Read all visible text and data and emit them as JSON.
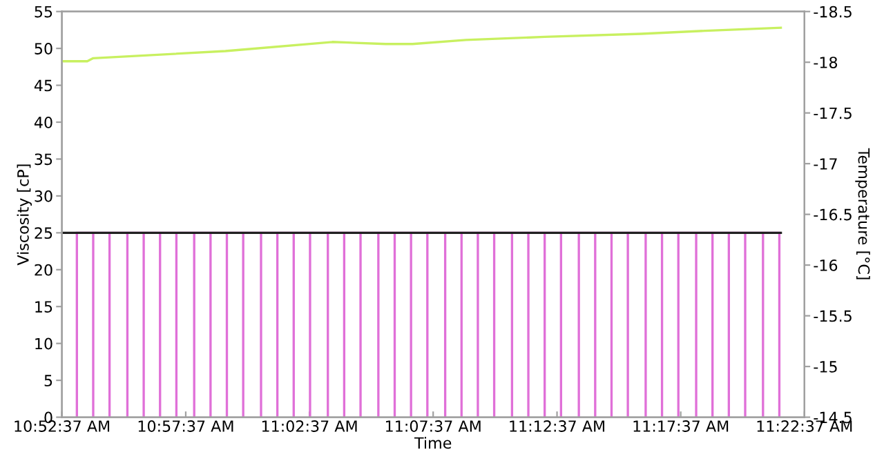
{
  "chart_data": {
    "type": "line",
    "xlabel": "Time",
    "ylabel": "Viscosity [cP]",
    "y2label": "Temperature [°C]",
    "xlim": [
      10.8769,
      11.3769
    ],
    "xticks": [
      {
        "value": 10.8769,
        "label": "10:52:37 AM"
      },
      {
        "value": 10.9603,
        "label": "10:57:37 AM"
      },
      {
        "value": 11.0436,
        "label": "11:02:37 AM"
      },
      {
        "value": 11.1269,
        "label": "11:07:37 AM"
      },
      {
        "value": 11.2103,
        "label": "11:12:37 AM"
      },
      {
        "value": 11.2936,
        "label": "11:17:37 AM"
      },
      {
        "value": 11.3769,
        "label": "11:22:37 AM"
      }
    ],
    "ylim": [
      0,
      55
    ],
    "yticks": [
      0,
      5,
      10,
      15,
      20,
      25,
      30,
      35,
      40,
      45,
      50,
      55
    ],
    "y2lim": [
      -14.5,
      -18.5
    ],
    "y2ticks": [
      -18.5,
      -18,
      -17.5,
      -17,
      -16.5,
      -16,
      -15.5,
      -15,
      -14.5
    ],
    "grid": false,
    "legend": false,
    "series": [
      {
        "color": "#e070d8",
        "x": [
          10.887,
          10.887,
          10.887,
          10.898,
          10.898,
          10.898,
          10.909,
          10.909,
          10.909,
          10.921,
          10.921,
          10.921,
          10.932,
          10.932,
          10.932,
          10.943,
          10.943,
          10.943,
          10.954,
          10.954,
          10.954,
          10.966,
          10.966,
          10.966,
          10.977,
          10.977,
          10.977,
          10.988,
          10.988,
          10.988,
          10.999,
          10.999,
          10.999,
          11.011,
          11.011,
          11.011,
          11.022,
          11.022,
          11.022,
          11.033,
          11.033,
          11.033,
          11.044,
          11.044,
          11.044,
          11.056,
          11.056,
          11.056,
          11.067,
          11.067,
          11.067,
          11.078,
          11.078,
          11.078,
          11.09,
          11.09,
          11.09,
          11.101,
          11.101,
          11.101,
          11.112,
          11.112,
          11.112,
          11.123,
          11.123,
          11.123,
          11.135,
          11.135,
          11.135,
          11.146,
          11.146,
          11.146,
          11.157,
          11.157,
          11.157,
          11.168,
          11.168,
          11.168,
          11.18,
          11.18,
          11.18,
          11.191,
          11.191,
          11.191,
          11.202,
          11.202,
          11.202,
          11.213,
          11.213,
          11.213,
          11.225,
          11.225,
          11.225,
          11.236,
          11.236,
          11.236,
          11.247,
          11.247,
          11.247,
          11.258,
          11.258,
          11.258,
          11.27,
          11.27,
          11.27,
          11.281,
          11.281,
          11.281,
          11.292,
          11.292,
          11.292,
          11.304,
          11.304,
          11.304,
          11.315,
          11.315,
          11.315,
          11.326,
          11.326,
          11.326,
          11.337,
          11.337,
          11.337,
          11.349,
          11.349,
          11.349,
          11.36,
          11.36,
          11.36
        ],
        "values": [
          25,
          0,
          25,
          25,
          0,
          25,
          25,
          0,
          25,
          25,
          0,
          25,
          25,
          0,
          25,
          25,
          0,
          25,
          25,
          0,
          25,
          25,
          0,
          25,
          25,
          0,
          25,
          25,
          0,
          25,
          25,
          0,
          25,
          25,
          0,
          25,
          25,
          0,
          25,
          25,
          0,
          25,
          25,
          0,
          25,
          25,
          0,
          25,
          25,
          0,
          25,
          25,
          0,
          25,
          25,
          0,
          25,
          25,
          0,
          25,
          25,
          0,
          25,
          25,
          0,
          25,
          25,
          0,
          25,
          25,
          0,
          25,
          25,
          0,
          25,
          25,
          0,
          25,
          25,
          0,
          25,
          25,
          0,
          25,
          25,
          0,
          25,
          25,
          0,
          25,
          25,
          0,
          25,
          25,
          0,
          25,
          25,
          0,
          25,
          25,
          0,
          25,
          25,
          0,
          25,
          25,
          0,
          25,
          25,
          0,
          25,
          25,
          0,
          25,
          25,
          0,
          25,
          25,
          0,
          25,
          25,
          0,
          25,
          25,
          0,
          25,
          25,
          0,
          25
        ]
      },
      {
        "color": "#202020",
        "x": [
          10.877,
          11.361
        ],
        "values": [
          25,
          25
        ]
      },
      {
        "color": "#c8f060",
        "axis": "y2",
        "x": [
          10.878,
          10.894,
          10.898,
          10.987,
          11.059,
          11.095,
          11.113,
          11.149,
          11.202,
          11.267,
          11.31,
          11.361
        ],
        "values": [
          -18.01,
          -18.01,
          -18.04,
          -18.11,
          -18.2,
          -18.18,
          -18.18,
          -18.22,
          -18.25,
          -18.28,
          -18.31,
          -18.34
        ]
      }
    ]
  }
}
